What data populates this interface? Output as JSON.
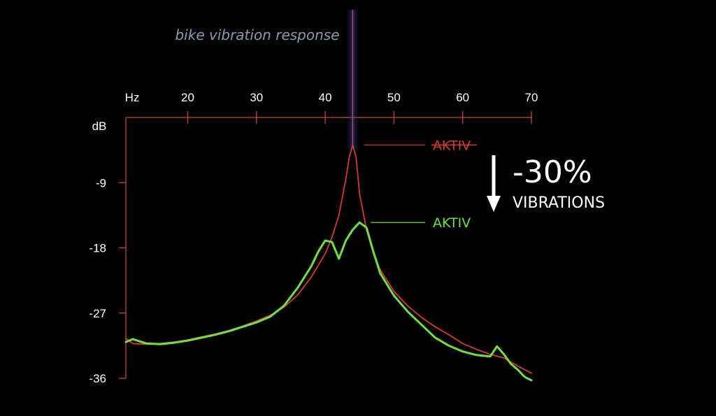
{
  "chart_data": {
    "type": "line",
    "title": "bike vibration response",
    "x_unit": "Hz",
    "y_unit": "dB",
    "xlim": [
      11,
      70
    ],
    "ylim": [
      0,
      -36
    ],
    "x_ticks": [
      20,
      30,
      40,
      50,
      60,
      70
    ],
    "y_ticks": [
      -9,
      -18,
      -27,
      -36
    ],
    "marker_x": 44,
    "annotation": {
      "reduction": "-30%",
      "subtitle": "VIBRATIONS"
    },
    "series": [
      {
        "name": "AKTIV",
        "color": "#d23a32",
        "strikethrough": true,
        "points": [
          [
            11,
            -30.5
          ],
          [
            12,
            -31.2
          ],
          [
            14,
            -31.3
          ],
          [
            16,
            -31.2
          ],
          [
            18,
            -31.0
          ],
          [
            20,
            -30.7
          ],
          [
            22,
            -30.3
          ],
          [
            24,
            -29.9
          ],
          [
            26,
            -29.4
          ],
          [
            28,
            -28.8
          ],
          [
            30,
            -28.1
          ],
          [
            32,
            -27.3
          ],
          [
            34,
            -26.2
          ],
          [
            36,
            -24.5
          ],
          [
            38,
            -22.0
          ],
          [
            40,
            -18.8
          ],
          [
            41,
            -16.5
          ],
          [
            42,
            -13.5
          ],
          [
            43,
            -8.5
          ],
          [
            43.5,
            -5.5
          ],
          [
            44,
            -3.8
          ],
          [
            44.5,
            -5.5
          ],
          [
            45,
            -10.5
          ],
          [
            46,
            -15.5
          ],
          [
            47,
            -18.7
          ],
          [
            48,
            -21.0
          ],
          [
            50,
            -24.0
          ],
          [
            52,
            -26.0
          ],
          [
            54,
            -27.6
          ],
          [
            56,
            -28.9
          ],
          [
            58,
            -30.0
          ],
          [
            60,
            -31.2
          ],
          [
            62,
            -32.0
          ],
          [
            64,
            -32.7
          ],
          [
            66,
            -33.2
          ],
          [
            68,
            -34.3
          ],
          [
            70,
            -35.3
          ]
        ]
      },
      {
        "name": "AKTIV",
        "color": "#6fe040",
        "strikethrough": false,
        "points": [
          [
            11,
            -31.0
          ],
          [
            12,
            -30.6
          ],
          [
            14,
            -31.2
          ],
          [
            16,
            -31.3
          ],
          [
            18,
            -31.1
          ],
          [
            20,
            -30.8
          ],
          [
            22,
            -30.4
          ],
          [
            24,
            -30.0
          ],
          [
            26,
            -29.5
          ],
          [
            28,
            -28.9
          ],
          [
            30,
            -28.3
          ],
          [
            32,
            -27.5
          ],
          [
            34,
            -26.0
          ],
          [
            36,
            -23.5
          ],
          [
            38,
            -20.5
          ],
          [
            39,
            -18.5
          ],
          [
            40,
            -17.0
          ],
          [
            41,
            -17.2
          ],
          [
            42,
            -19.5
          ],
          [
            43,
            -17.0
          ],
          [
            44,
            -15.5
          ],
          [
            45,
            -14.5
          ],
          [
            46,
            -15.2
          ],
          [
            47,
            -18.5
          ],
          [
            48,
            -21.5
          ],
          [
            50,
            -24.6
          ],
          [
            52,
            -26.8
          ],
          [
            54,
            -28.6
          ],
          [
            56,
            -30.4
          ],
          [
            58,
            -31.5
          ],
          [
            60,
            -32.3
          ],
          [
            62,
            -32.8
          ],
          [
            64,
            -33.0
          ],
          [
            65,
            -31.6
          ],
          [
            66,
            -32.7
          ],
          [
            67,
            -34.0
          ],
          [
            68,
            -34.8
          ],
          [
            69,
            -35.8
          ],
          [
            70,
            -36.3
          ]
        ]
      }
    ]
  }
}
